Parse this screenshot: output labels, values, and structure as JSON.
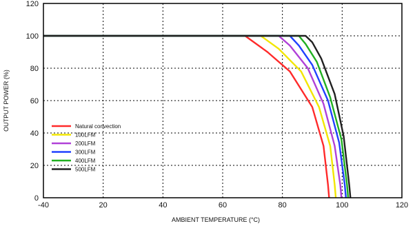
{
  "chart_data": {
    "type": "line",
    "title": "",
    "xlabel": "AMBIENT TEMPERATURE (°C)",
    "ylabel": "OUTPUT POWER (%)",
    "xlim": [
      -40,
      120
    ],
    "ylim": [
      0,
      120
    ],
    "x_ticks": [
      "-40",
      "20",
      "40",
      "60",
      "80",
      "100",
      "120"
    ],
    "y_ticks": [
      "0",
      "20",
      "40",
      "60",
      "80",
      "100",
      "120"
    ],
    "grid": "dotted",
    "legend_position": "bottom-left",
    "colors": {
      "natural_convection": "#ff2a2a",
      "lfm_100": "#f2e600",
      "lfm_200": "#b040d8",
      "lfm_300": "#2040ff",
      "lfm_400": "#20b020",
      "lfm_500": "#202020"
    },
    "series": [
      {
        "name": "Natural convection",
        "color": "#ff2a2a",
        "points": [
          [
            -40,
            100
          ],
          [
            50,
            100
          ],
          [
            60,
            90
          ],
          [
            70,
            78
          ],
          [
            80,
            56
          ],
          [
            85,
            32
          ],
          [
            87,
            8
          ],
          [
            87.5,
            0
          ]
        ]
      },
      {
        "name": "100LFM",
        "color": "#f2e600",
        "points": [
          [
            -40,
            100
          ],
          [
            57,
            100
          ],
          [
            65,
            92
          ],
          [
            75,
            78
          ],
          [
            83,
            56
          ],
          [
            88,
            32
          ],
          [
            90,
            8
          ],
          [
            90.5,
            0
          ]
        ]
      },
      {
        "name": "200LFM",
        "color": "#b040d8",
        "points": [
          [
            -40,
            100
          ],
          [
            65,
            100
          ],
          [
            70,
            94
          ],
          [
            78,
            80
          ],
          [
            85,
            58
          ],
          [
            90,
            32
          ],
          [
            92.5,
            8
          ],
          [
            93,
            0
          ]
        ]
      },
      {
        "name": "300LFM",
        "color": "#2040ff",
        "points": [
          [
            -40,
            100
          ],
          [
            70,
            100
          ],
          [
            74,
            94
          ],
          [
            80,
            82
          ],
          [
            87,
            60
          ],
          [
            92,
            34
          ],
          [
            94.5,
            8
          ],
          [
            95,
            0
          ]
        ]
      },
      {
        "name": "400LFM",
        "color": "#20b020",
        "points": [
          [
            -40,
            100
          ],
          [
            74,
            100
          ],
          [
            77,
            95
          ],
          [
            82,
            84
          ],
          [
            88,
            62
          ],
          [
            93,
            36
          ],
          [
            95.5,
            8
          ],
          [
            96,
            0
          ]
        ]
      },
      {
        "name": "500LFM",
        "color": "#202020",
        "points": [
          [
            -40,
            100
          ],
          [
            77,
            100
          ],
          [
            80,
            96
          ],
          [
            84,
            86
          ],
          [
            90,
            64
          ],
          [
            94,
            38
          ],
          [
            96.5,
            8
          ],
          [
            97,
            0
          ]
        ]
      }
    ]
  }
}
